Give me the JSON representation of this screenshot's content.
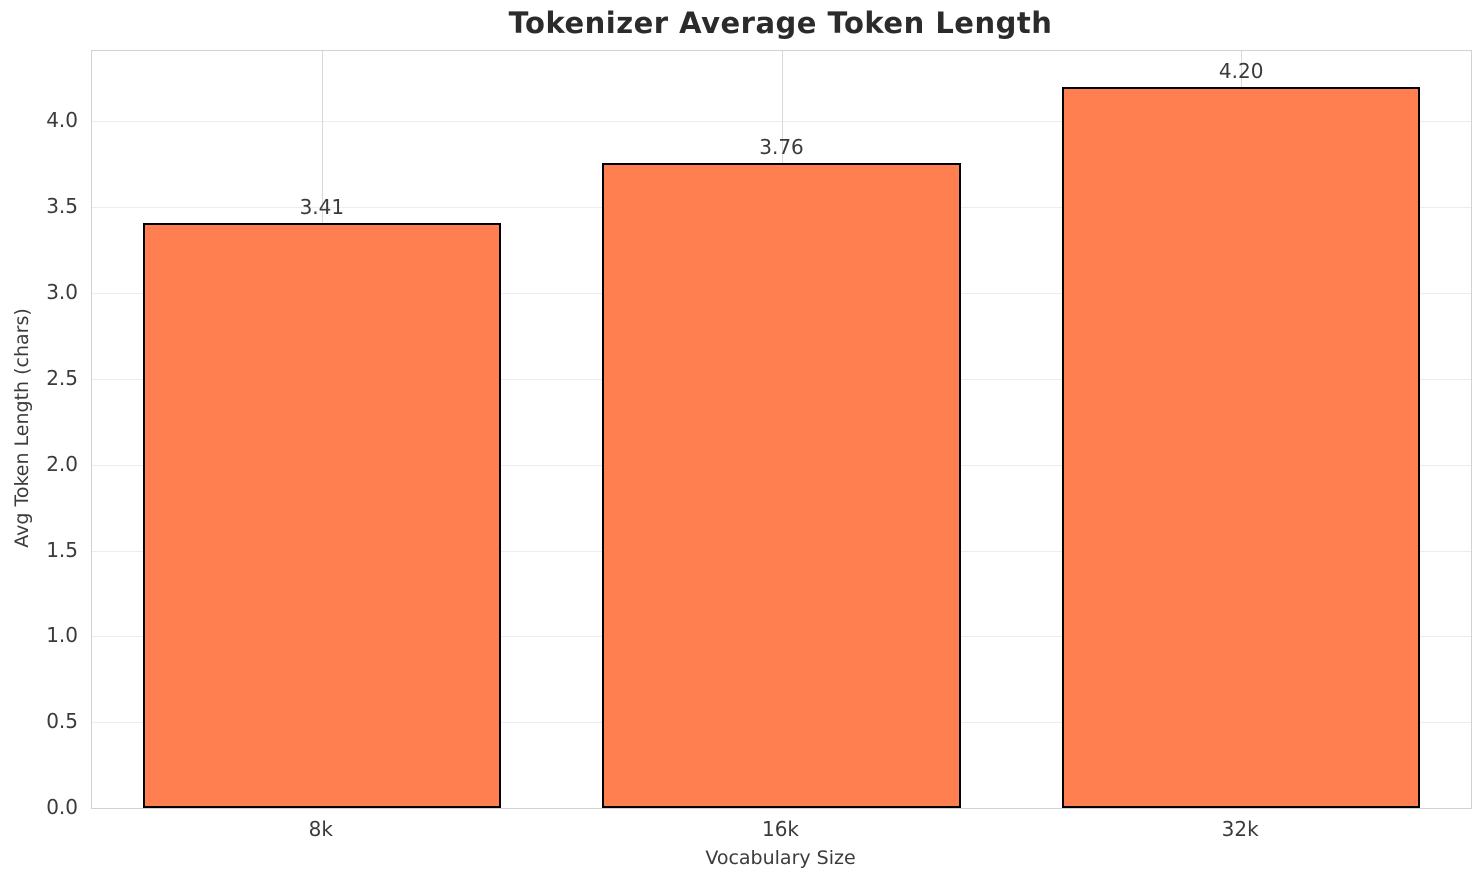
{
  "title": "Tokenizer Average Token Length",
  "chart_data": {
    "type": "bar",
    "title": "Tokenizer Average Token Length",
    "xlabel": "Vocabulary Size",
    "ylabel": "Avg Token Length (chars)",
    "categories": [
      "8k",
      "16k",
      "32k"
    ],
    "values": [
      3.41,
      3.76,
      4.2
    ],
    "value_labels": [
      "3.41",
      "3.76",
      "4.20"
    ],
    "yticks": [
      0.0,
      0.5,
      1.0,
      1.5,
      2.0,
      2.5,
      3.0,
      3.5,
      4.0
    ],
    "ytick_labels": [
      "0.0",
      "0.5",
      "1.0",
      "1.5",
      "2.0",
      "2.5",
      "3.0",
      "3.5",
      "4.0"
    ],
    "ylim": [
      0,
      4.41
    ],
    "grid": true,
    "legend_position": "none",
    "bar_width_frac": 0.78,
    "colors": {
      "bar_fill": "#FF7F50",
      "bar_edge": "#000000",
      "spine": "#d2d2d2",
      "grid_horizontal": "#ededed",
      "grid_vertical": "#d9d9d9",
      "title_text": "#2b2b2b",
      "tick_text": "#3b3b3b",
      "background": "#ffffff"
    }
  }
}
